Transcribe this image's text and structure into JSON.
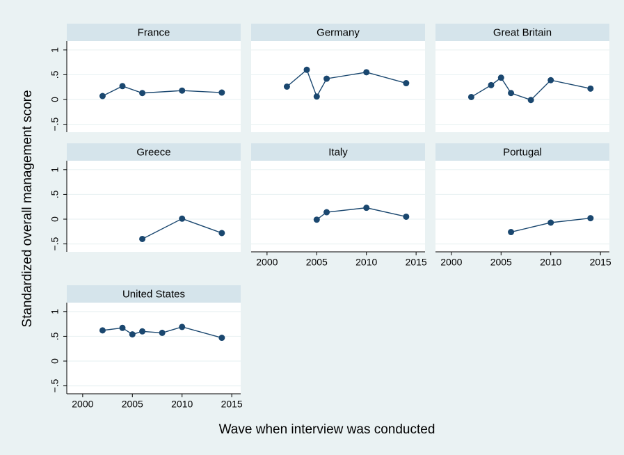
{
  "y_label": "Standardized overall management score",
  "x_label": "Wave when interview was conducted",
  "chart_data": [
    {
      "type": "line",
      "title": "France",
      "color": "#1a476f",
      "x": [
        2002,
        2004,
        2006,
        2010,
        2014
      ],
      "values": [
        0.07,
        0.27,
        0.13,
        0.18,
        0.14
      ],
      "xlim": [
        1998.4,
        2015.9
      ],
      "ylim": [
        -0.66,
        1.18
      ],
      "xticks": [
        2000,
        2005,
        2010,
        2015
      ],
      "yticks": [
        {
          "value": -0.5,
          "label": "−.5"
        },
        0,
        {
          "value": 0.5,
          "label": ".5"
        },
        1
      ],
      "grid": true
    },
    {
      "type": "line",
      "title": "Germany",
      "color": "#1a476f",
      "x": [
        2002,
        2004,
        2005,
        2006,
        2010,
        2014
      ],
      "values": [
        0.26,
        0.6,
        0.06,
        0.42,
        0.55,
        0.33
      ],
      "xlim": [
        1998.4,
        2015.9
      ],
      "ylim": [
        -0.66,
        1.18
      ],
      "xticks": [
        2000,
        2005,
        2010,
        2015
      ],
      "yticks": [
        {
          "value": -0.5,
          "label": "−.5"
        },
        0,
        {
          "value": 0.5,
          "label": ".5"
        },
        1
      ],
      "grid": true
    },
    {
      "type": "line",
      "title": "Great Britain",
      "color": "#1a476f",
      "x": [
        2002,
        2004,
        2005,
        2006,
        2008,
        2010,
        2014
      ],
      "values": [
        0.05,
        0.29,
        0.44,
        0.13,
        -0.01,
        0.39,
        0.22
      ],
      "xlim": [
        1998.4,
        2015.9
      ],
      "ylim": [
        -0.66,
        1.18
      ],
      "xticks": [
        2000,
        2005,
        2010,
        2015
      ],
      "yticks": [
        {
          "value": -0.5,
          "label": "−.5"
        },
        0,
        {
          "value": 0.5,
          "label": ".5"
        },
        1
      ],
      "grid": true
    },
    {
      "type": "line",
      "title": "Greece",
      "color": "#1a476f",
      "x": [
        2006,
        2010,
        2014
      ],
      "values": [
        -0.4,
        0.01,
        -0.28
      ],
      "xlim": [
        1998.4,
        2015.9
      ],
      "ylim": [
        -0.66,
        1.18
      ],
      "xticks": [
        2000,
        2005,
        2010,
        2015
      ],
      "yticks": [
        {
          "value": -0.5,
          "label": "−.5"
        },
        0,
        {
          "value": 0.5,
          "label": ".5"
        },
        1
      ],
      "grid": true
    },
    {
      "type": "line",
      "title": "Italy",
      "color": "#1a476f",
      "x": [
        2005,
        2006,
        2010,
        2014
      ],
      "values": [
        -0.01,
        0.14,
        0.23,
        0.05
      ],
      "xlim": [
        1998.4,
        2015.9
      ],
      "ylim": [
        -0.66,
        1.18
      ],
      "xticks": [
        2000,
        2005,
        2010,
        2015
      ],
      "yticks": [
        {
          "value": -0.5,
          "label": "−.5"
        },
        0,
        {
          "value": 0.5,
          "label": ".5"
        },
        1
      ],
      "grid": true
    },
    {
      "type": "line",
      "title": "Portugal",
      "color": "#1a476f",
      "x": [
        2006,
        2010,
        2014
      ],
      "values": [
        -0.26,
        -0.07,
        0.02
      ],
      "xlim": [
        1998.4,
        2015.9
      ],
      "ylim": [
        -0.66,
        1.18
      ],
      "xticks": [
        2000,
        2005,
        2010,
        2015
      ],
      "yticks": [
        {
          "value": -0.5,
          "label": "−.5"
        },
        0,
        {
          "value": 0.5,
          "label": ".5"
        },
        1
      ],
      "grid": true
    },
    {
      "type": "line",
      "title": "United States",
      "color": "#1a476f",
      "x": [
        2002,
        2004,
        2005,
        2006,
        2008,
        2010,
        2014
      ],
      "values": [
        0.62,
        0.67,
        0.54,
        0.6,
        0.57,
        0.69,
        0.47
      ],
      "xlim": [
        1998.4,
        2015.9
      ],
      "ylim": [
        -0.66,
        1.18
      ],
      "xticks": [
        2000,
        2005,
        2010,
        2015
      ],
      "yticks": [
        {
          "value": -0.5,
          "label": "−.5"
        },
        0,
        {
          "value": 0.5,
          "label": ".5"
        },
        1
      ],
      "grid": true
    }
  ]
}
